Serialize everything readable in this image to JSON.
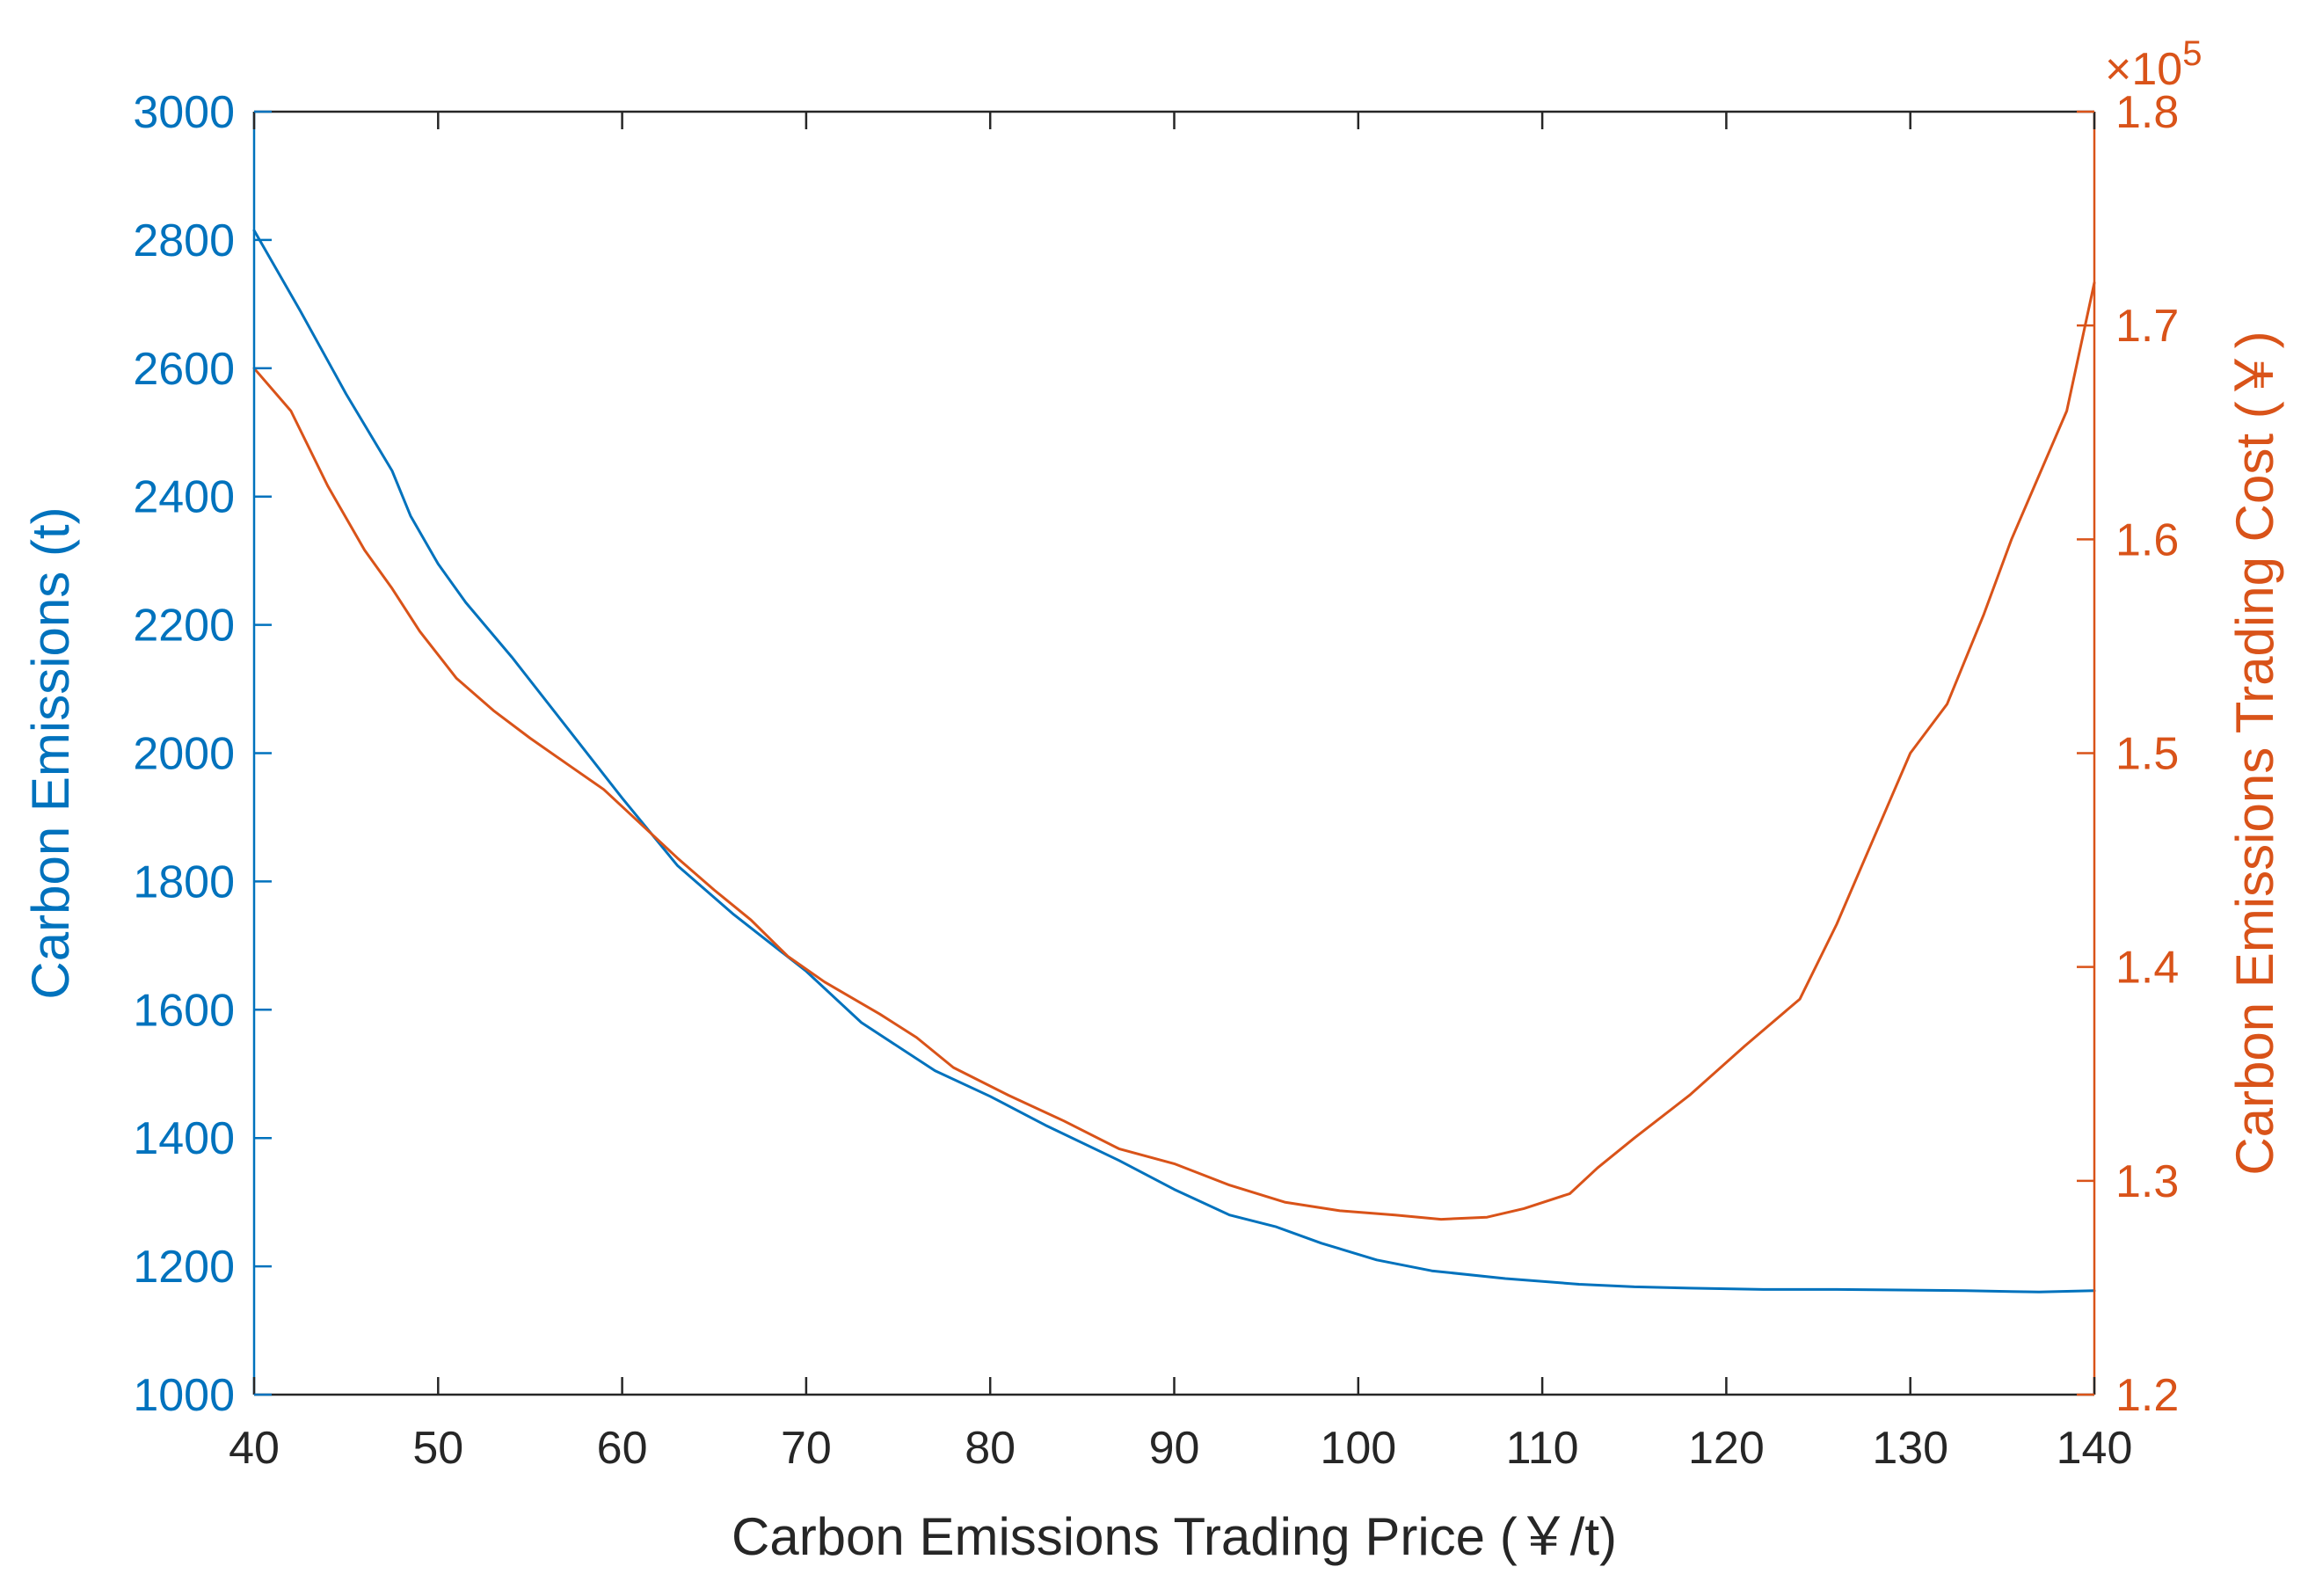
{
  "chart_data": {
    "type": "line",
    "xlabel": "Carbon Emissions Trading Price (￥/t)",
    "ylabel_left": "Carbon Emissions (t)",
    "ylabel_right": "Carbon Emissions Trading Cost (￥)",
    "right_axis_exponent": "×10",
    "right_axis_exponent_power": "5",
    "xlim": [
      40,
      140
    ],
    "ylim_left": [
      1000,
      3000
    ],
    "ylim_right": [
      1.2,
      1.8
    ],
    "x_ticks": [
      40,
      50,
      60,
      70,
      80,
      90,
      100,
      110,
      120,
      130,
      140
    ],
    "x_tick_labels": [
      "40",
      "50",
      "60",
      "70",
      "80",
      "90",
      "100",
      "110",
      "120",
      "130",
      "140"
    ],
    "left_ticks": [
      1000,
      1200,
      1400,
      1600,
      1800,
      2000,
      2200,
      2400,
      2600,
      2800,
      3000
    ],
    "left_tick_labels": [
      "1000",
      "1200",
      "1400",
      "1600",
      "1800",
      "2000",
      "2200",
      "2400",
      "2600",
      "2800",
      "3000"
    ],
    "right_ticks": [
      1.2,
      1.3,
      1.4,
      1.5,
      1.6,
      1.7,
      1.8
    ],
    "right_tick_labels": [
      "1.2",
      "1.3",
      "1.4",
      "1.5",
      "1.6",
      "1.7",
      "1.8"
    ],
    "series": [
      {
        "name": "Carbon Emissions",
        "axis": "left",
        "color": "#0072BD",
        "x": [
          40,
          42.5,
          45,
          47.5,
          48.5,
          50,
          51.5,
          54,
          57,
          60,
          63,
          66,
          70,
          73,
          77,
          80,
          83,
          87,
          90,
          93,
          95.5,
          98,
          101,
          104,
          108,
          112,
          115,
          118,
          122,
          126,
          130,
          133,
          137,
          140
        ],
        "values": [
          2815,
          2690,
          2560,
          2440,
          2370,
          2295,
          2235,
          2150,
          2040,
          1930,
          1825,
          1750,
          1660,
          1580,
          1505,
          1465,
          1420,
          1365,
          1320,
          1280,
          1262,
          1236,
          1210,
          1193,
          1181,
          1172,
          1168,
          1166,
          1164,
          1164,
          1163,
          1162,
          1160,
          1162
        ]
      },
      {
        "name": "Carbon Emissions Trading Cost",
        "axis": "right",
        "color": "#D95319",
        "x": [
          40,
          42,
          44,
          46,
          47.5,
          49,
          51,
          53,
          55,
          57,
          59,
          61,
          63,
          65,
          67,
          69,
          71,
          74,
          76,
          78,
          81,
          84,
          87,
          90,
          93,
          96,
          99,
          102,
          104.5,
          107,
          109,
          111.5,
          113,
          115,
          118,
          121,
          124,
          126,
          128,
          130,
          132,
          134,
          135.5,
          137,
          138.5,
          140
        ],
        "values": [
          1.68,
          1.66,
          1.625,
          1.595,
          1.577,
          1.557,
          1.535,
          1.52,
          1.507,
          1.495,
          1.483,
          1.467,
          1.451,
          1.436,
          1.422,
          1.405,
          1.393,
          1.378,
          1.367,
          1.353,
          1.34,
          1.328,
          1.315,
          1.308,
          1.298,
          1.29,
          1.286,
          1.284,
          1.282,
          1.283,
          1.287,
          1.294,
          1.306,
          1.32,
          1.34,
          1.363,
          1.385,
          1.42,
          1.46,
          1.5,
          1.523,
          1.565,
          1.6,
          1.63,
          1.66,
          1.72
        ]
      }
    ]
  }
}
